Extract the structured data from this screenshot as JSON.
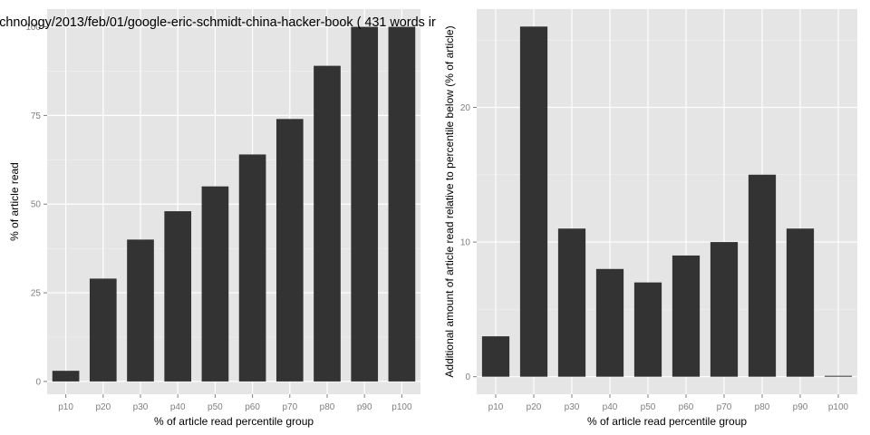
{
  "page_title": "chnology/2013/feb/01/google-eric-schmidt-china-hacker-book ( 431 words ir",
  "chart_data": [
    {
      "type": "bar",
      "title": "chnology/2013/feb/01/google-eric-schmidt-china-hacker-book ( 431 words ir",
      "xlabel": "% of article read percentile group",
      "ylabel": "% of article read",
      "categories": [
        "p10",
        "p20",
        "p30",
        "p40",
        "p50",
        "p60",
        "p70",
        "p80",
        "p90",
        "p100"
      ],
      "values": [
        3,
        29,
        40,
        48,
        55,
        64,
        74,
        89,
        100,
        100
      ],
      "ylim": [
        -3.6,
        105
      ],
      "yticks": [
        0,
        25,
        50,
        75,
        100
      ],
      "ytick_labels": [
        "0",
        "25",
        "50",
        "75",
        "100"
      ],
      "grid": true,
      "bar_color": "#333333",
      "panel_color": "#e5e5e5"
    },
    {
      "type": "bar",
      "title": "",
      "xlabel": "% of article read percentile group",
      "ylabel": "Additional amount of article read relative to percentile below (% of article)",
      "categories": [
        "p10",
        "p20",
        "p30",
        "p40",
        "p50",
        "p60",
        "p70",
        "p80",
        "p90",
        "p100"
      ],
      "values": [
        3,
        26,
        11,
        8,
        7,
        9,
        10,
        15,
        11,
        0
      ],
      "ylim": [
        -1.3,
        27.3
      ],
      "yticks": [
        0,
        10,
        20
      ],
      "ytick_labels": [
        "0",
        "10",
        "20"
      ],
      "grid": true,
      "bar_color": "#333333",
      "panel_color": "#e5e5e5"
    }
  ]
}
